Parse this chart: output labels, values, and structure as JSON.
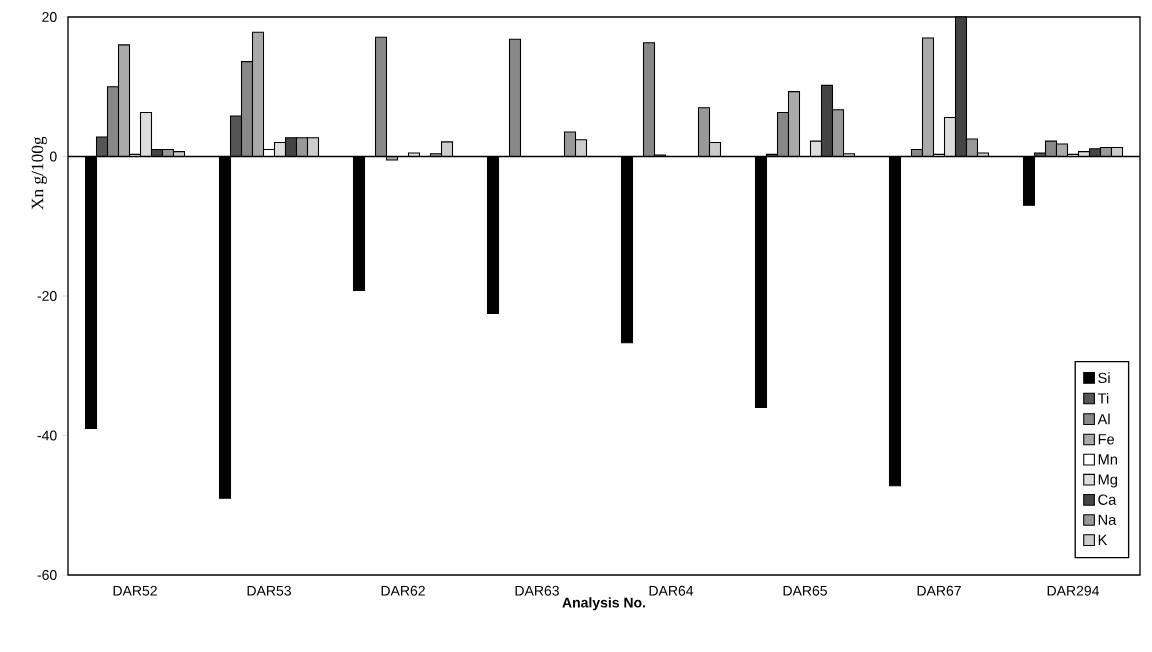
{
  "chart_data": {
    "type": "bar",
    "xlabel": "**Analysis No.**",
    "ylabel": "Xn   g/100g",
    "categories": [
      "DAR52",
      "DAR53",
      "DAR62",
      "DAR63",
      "DAR64",
      "DAR65",
      "DAR67",
      "DAR294"
    ],
    "series": [
      {
        "name": "Si",
        "color": "#000000",
        "values": [
          -39,
          -49,
          -19.2,
          -22.5,
          -26.7,
          -36,
          -47.2,
          -7
        ]
      },
      {
        "name": "Ti",
        "color": "#555555",
        "values": [
          2.8,
          5.8,
          null,
          null,
          null,
          0.3,
          null,
          0.5
        ]
      },
      {
        "name": "Al",
        "color": "#888888",
        "values": [
          10,
          13.6,
          17.1,
          16.8,
          16.3,
          6.3,
          1,
          2.2
        ]
      },
      {
        "name": "Fe",
        "color": "#aaaaaa",
        "values": [
          16,
          17.8,
          -0.5,
          null,
          0.2,
          9.3,
          17,
          1.8
        ]
      },
      {
        "name": "Mn",
        "color": "#ffffff",
        "values": [
          0.3,
          1,
          null,
          null,
          null,
          null,
          0.3,
          0.3
        ]
      },
      {
        "name": "Mg",
        "color": "#dddddd",
        "values": [
          6.3,
          2,
          0.5,
          null,
          null,
          2.2,
          5.6,
          0.7
        ]
      },
      {
        "name": "Ca",
        "color": "#444444",
        "values": [
          1,
          2.7,
          null,
          null,
          null,
          10.2,
          20,
          1.1
        ]
      },
      {
        "name": "Na",
        "color": "#999999",
        "values": [
          1,
          2.7,
          0.4,
          3.5,
          7,
          6.7,
          2.5,
          1.3
        ]
      },
      {
        "name": "K",
        "color": "#cccccc",
        "values": [
          0.7,
          2.7,
          2.1,
          2.4,
          2,
          0.4,
          0.5,
          1.3
        ]
      }
    ],
    "ylim": [
      -60,
      20
    ],
    "yticks": [
      -60,
      -40,
      -20,
      0,
      20
    ],
    "legend": "bottom right"
  }
}
